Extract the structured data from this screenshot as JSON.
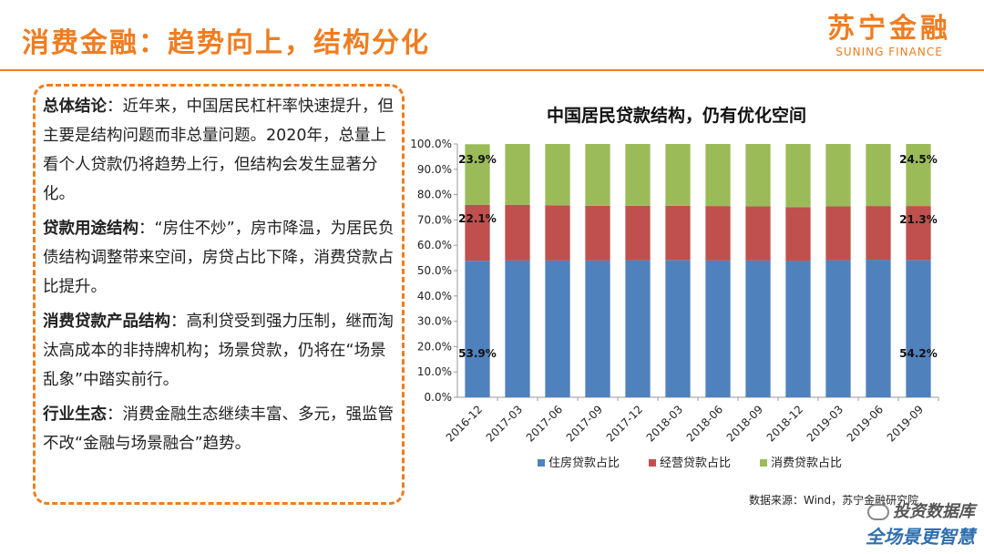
{
  "header": {
    "title": "消费金融：趋势向上，结构分化",
    "logo_cn": "苏宁金融",
    "logo_en": "SUNING FINANCE"
  },
  "summary": [
    {
      "heading": "总体结论",
      "body": "：近年来，中国居民杠杆率快速提升，但主要是结构问题而非总量问题。2020年，总量上看个人贷款仍将趋势上行，但结构会发生显著分化。"
    },
    {
      "heading": "贷款用途结构",
      "body": "：“房住不炒”，房市降温，为居民负债结构调整带来空间，房贷占比下降，消费贷款占比提升。"
    },
    {
      "heading": "消费贷款产品结构",
      "body": "：高利贷受到强力压制，继而淘汰高成本的非持牌机构；场景贷款，仍将在“场景乱象”中踏实前行。"
    },
    {
      "heading": "行业生态",
      "body": "：消费金融生态继续丰富、多元，强监管不改“金融与场景融合”趋势。"
    }
  ],
  "chart_data": {
    "type": "bar",
    "stacked": true,
    "percent": true,
    "title": "中国居民贷款结构，仍有优化空间",
    "categories": [
      "2016-12",
      "2017-03",
      "2017-06",
      "2017-09",
      "2017-12",
      "2018-03",
      "2018-06",
      "2018-09",
      "2018-12",
      "2019-03",
      "2019-06",
      "2019-09"
    ],
    "series": [
      {
        "name": "住房贷款占比",
        "color": "#4f81bd",
        "values": [
          53.9,
          54.0,
          54.0,
          54.0,
          54.1,
          54.2,
          54.0,
          54.0,
          53.8,
          54.1,
          54.3,
          54.2
        ]
      },
      {
        "name": "经营贷款占比",
        "color": "#c0504d",
        "values": [
          22.1,
          22.0,
          21.8,
          21.6,
          21.5,
          21.4,
          21.5,
          21.4,
          21.3,
          21.3,
          21.2,
          21.3
        ]
      },
      {
        "name": "消费贷款占比",
        "color": "#9bbb59",
        "values": [
          23.9,
          24.0,
          24.2,
          24.4,
          24.4,
          24.4,
          24.5,
          24.6,
          24.9,
          24.6,
          24.5,
          24.5
        ]
      }
    ],
    "data_labels": [
      {
        "series": 0,
        "index": 0,
        "text": "53.9%"
      },
      {
        "series": 1,
        "index": 0,
        "text": "22.1%"
      },
      {
        "series": 2,
        "index": 0,
        "text": "23.9%"
      },
      {
        "series": 0,
        "index": 11,
        "text": "54.2%"
      },
      {
        "series": 1,
        "index": 11,
        "text": "21.3%"
      },
      {
        "series": 2,
        "index": 11,
        "text": "24.5%"
      }
    ],
    "yticks": [
      "0.0%",
      "10.0%",
      "20.0%",
      "30.0%",
      "40.0%",
      "50.0%",
      "60.0%",
      "70.0%",
      "80.0%",
      "90.0%",
      "100.0%"
    ],
    "ylim": [
      0,
      100
    ],
    "legend_position": "bottom",
    "grid": false
  },
  "source": "数据来源：Wind，苏宁金融研究院",
  "watermark": {
    "top": "投资数据库",
    "bottom": "全场景更智慧"
  }
}
